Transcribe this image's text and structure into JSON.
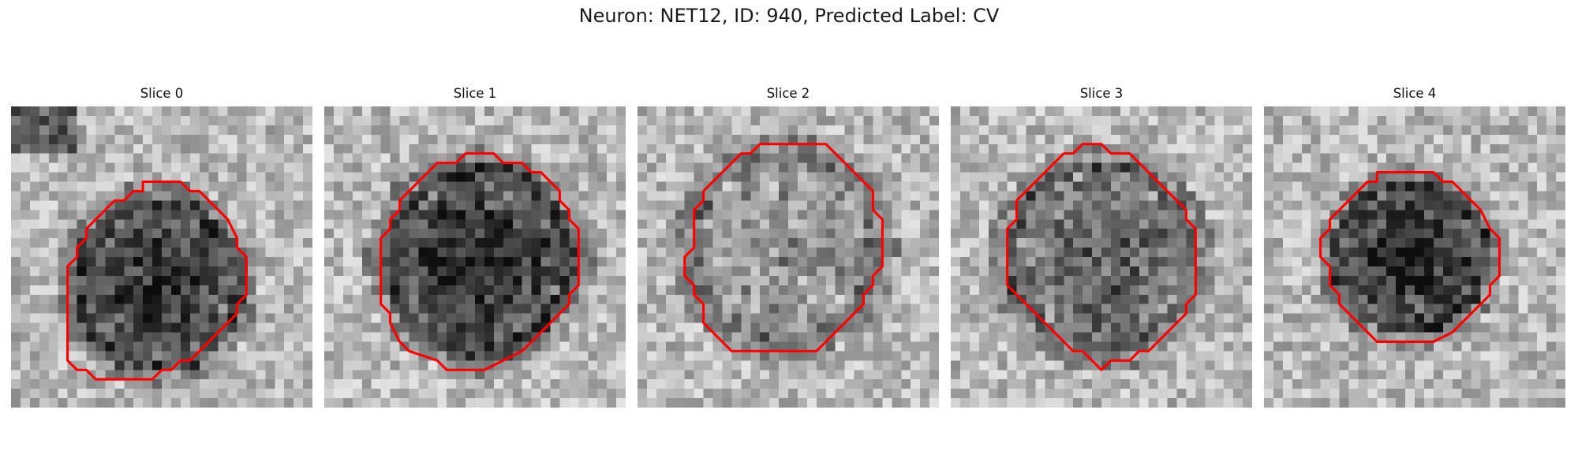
{
  "title": "Neuron: NET12, ID: 940, Predicted Label: CV",
  "colors": {
    "contour": "#ff0000",
    "background": "#ffffff"
  },
  "panels": [
    {
      "label": "Slice 0",
      "contour": [
        [
          14,
          8
        ],
        [
          18,
          8
        ],
        [
          19,
          9
        ],
        [
          20,
          9
        ],
        [
          21,
          10
        ],
        [
          22,
          11
        ],
        [
          23,
          12
        ],
        [
          24,
          14
        ],
        [
          24,
          15
        ],
        [
          25,
          16
        ],
        [
          25,
          20
        ],
        [
          24,
          21
        ],
        [
          24,
          22
        ],
        [
          23,
          23
        ],
        [
          22,
          24
        ],
        [
          21,
          25
        ],
        [
          20,
          26
        ],
        [
          19,
          27
        ],
        [
          18,
          27
        ],
        [
          17,
          28
        ],
        [
          16,
          28
        ],
        [
          15,
          29
        ],
        [
          9,
          29
        ],
        [
          8,
          28
        ],
        [
          7,
          28
        ],
        [
          6,
          27
        ],
        [
          6,
          17
        ],
        [
          7,
          16
        ],
        [
          7,
          15
        ],
        [
          8,
          14
        ],
        [
          8,
          13
        ],
        [
          9,
          12
        ],
        [
          10,
          11
        ],
        [
          11,
          10
        ],
        [
          12,
          10
        ],
        [
          13,
          9
        ],
        [
          14,
          9
        ]
      ],
      "blob": {
        "cx": 15.5,
        "cy": 19,
        "r": 9.5,
        "darkness": 0.55
      }
    },
    {
      "label": "Slice 1",
      "contour": [
        [
          15,
          5
        ],
        [
          18,
          5
        ],
        [
          19,
          6
        ],
        [
          21,
          6
        ],
        [
          22,
          7
        ],
        [
          23,
          7
        ],
        [
          24,
          8
        ],
        [
          25,
          9
        ],
        [
          25,
          10
        ],
        [
          26,
          11
        ],
        [
          26,
          12
        ],
        [
          27,
          13
        ],
        [
          27,
          19
        ],
        [
          26,
          20
        ],
        [
          26,
          21
        ],
        [
          25,
          22
        ],
        [
          24,
          23
        ],
        [
          23,
          24
        ],
        [
          22,
          25
        ],
        [
          21,
          26
        ],
        [
          17,
          28
        ],
        [
          13,
          28
        ],
        [
          12,
          27
        ],
        [
          9,
          26
        ],
        [
          8,
          25
        ],
        [
          7,
          23
        ],
        [
          7,
          22
        ],
        [
          6,
          21
        ],
        [
          6,
          14
        ],
        [
          7,
          13
        ],
        [
          7,
          12
        ],
        [
          8,
          11
        ],
        [
          8,
          10
        ],
        [
          9,
          9
        ],
        [
          10,
          8
        ],
        [
          11,
          7
        ],
        [
          12,
          6
        ],
        [
          14,
          6
        ],
        [
          15,
          5
        ]
      ],
      "blob": {
        "cx": 16.5,
        "cy": 16.5,
        "r": 10.5,
        "darkness": 0.55
      }
    },
    {
      "label": "Slice 2",
      "contour": [
        [
          13,
          4
        ],
        [
          20,
          4
        ],
        [
          21,
          5
        ],
        [
          22,
          6
        ],
        [
          23,
          7
        ],
        [
          24,
          8
        ],
        [
          25,
          9
        ],
        [
          25,
          11
        ],
        [
          26,
          12
        ],
        [
          26,
          17
        ],
        [
          25,
          18
        ],
        [
          25,
          19
        ],
        [
          24,
          20
        ],
        [
          24,
          21
        ],
        [
          23,
          22
        ],
        [
          22,
          23
        ],
        [
          21,
          24
        ],
        [
          20,
          25
        ],
        [
          19,
          26
        ],
        [
          10,
          26
        ],
        [
          9,
          25
        ],
        [
          8,
          24
        ],
        [
          7,
          23
        ],
        [
          7,
          21
        ],
        [
          6,
          20
        ],
        [
          6,
          19
        ],
        [
          5,
          18
        ],
        [
          5,
          16
        ],
        [
          6,
          15
        ],
        [
          6,
          11
        ],
        [
          7,
          10
        ],
        [
          7,
          9
        ],
        [
          8,
          8
        ],
        [
          9,
          7
        ],
        [
          10,
          6
        ],
        [
          11,
          5
        ],
        [
          12,
          5
        ],
        [
          13,
          4
        ]
      ],
      "blob": {
        "cx": 15.5,
        "cy": 15,
        "r": 10.5,
        "darkness": 0.15
      }
    },
    {
      "label": "Slice 3",
      "contour": [
        [
          15,
          4
        ],
        [
          16,
          4
        ],
        [
          17,
          5
        ],
        [
          19,
          5
        ],
        [
          20,
          6
        ],
        [
          21,
          7
        ],
        [
          22,
          8
        ],
        [
          23,
          9
        ],
        [
          24,
          10
        ],
        [
          25,
          11
        ],
        [
          25,
          12
        ],
        [
          26,
          13
        ],
        [
          26,
          20
        ],
        [
          25,
          21
        ],
        [
          25,
          22
        ],
        [
          24,
          23
        ],
        [
          23,
          24
        ],
        [
          22,
          25
        ],
        [
          21,
          26
        ],
        [
          20,
          26
        ],
        [
          19,
          27
        ],
        [
          17,
          27
        ],
        [
          16,
          28
        ],
        [
          15,
          27
        ],
        [
          14,
          26
        ],
        [
          13,
          26
        ],
        [
          12,
          25
        ],
        [
          11,
          24
        ],
        [
          10,
          23
        ],
        [
          9,
          22
        ],
        [
          8,
          21
        ],
        [
          7,
          20
        ],
        [
          6,
          19
        ],
        [
          6,
          13
        ],
        [
          7,
          12
        ],
        [
          7,
          10
        ],
        [
          8,
          9
        ],
        [
          9,
          8
        ],
        [
          10,
          7
        ],
        [
          11,
          6
        ],
        [
          12,
          5
        ],
        [
          13,
          5
        ],
        [
          14,
          4
        ]
      ],
      "blob": {
        "cx": 16,
        "cy": 16,
        "r": 10.5,
        "darkness": 0.35
      }
    },
    {
      "label": "Slice 4",
      "contour": [
        [
          12,
          7
        ],
        [
          18,
          7
        ],
        [
          19,
          8
        ],
        [
          20,
          8
        ],
        [
          21,
          9
        ],
        [
          22,
          10
        ],
        [
          23,
          11
        ],
        [
          24,
          13
        ],
        [
          25,
          14
        ],
        [
          25,
          18
        ],
        [
          24,
          19
        ],
        [
          24,
          20
        ],
        [
          23,
          21
        ],
        [
          22,
          22
        ],
        [
          21,
          23
        ],
        [
          20,
          24
        ],
        [
          18,
          25
        ],
        [
          12,
          25
        ],
        [
          11,
          24
        ],
        [
          10,
          23
        ],
        [
          9,
          22
        ],
        [
          8,
          21
        ],
        [
          8,
          20
        ],
        [
          7,
          19
        ],
        [
          7,
          17
        ],
        [
          6,
          16
        ],
        [
          6,
          14
        ],
        [
          7,
          13
        ],
        [
          7,
          12
        ],
        [
          8,
          11
        ],
        [
          9,
          10
        ],
        [
          10,
          9
        ],
        [
          11,
          8
        ],
        [
          12,
          8
        ]
      ],
      "blob": {
        "cx": 15.5,
        "cy": 16,
        "r": 8.5,
        "darkness": 0.6
      }
    }
  ]
}
